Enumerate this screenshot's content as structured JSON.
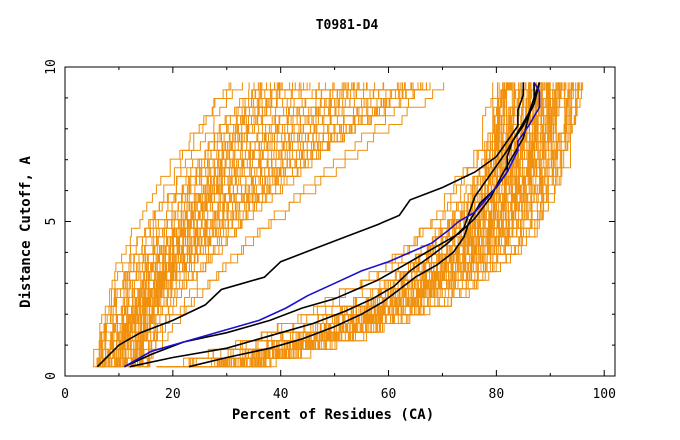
{
  "chart_data": {
    "type": "line",
    "title": "T0981-D4",
    "xlabel": "Percent of Residues (CA)",
    "ylabel": "Distance Cutoff, A",
    "xlim": [
      0,
      102
    ],
    "ylim": [
      0,
      10
    ],
    "xticks": [
      0,
      20,
      40,
      60,
      80,
      100
    ],
    "yticks": [
      0,
      5,
      10
    ],
    "grid": false,
    "colors": {
      "orange": "#f0900c",
      "black": "#000000",
      "blue": "#1a10d0"
    },
    "series": [
      {
        "color": "black",
        "x": [
          6,
          10,
          14,
          20,
          26,
          29,
          33,
          37,
          40,
          46,
          52,
          58,
          62,
          64,
          70,
          76,
          80,
          82,
          84,
          84,
          85,
          85
        ],
        "y": [
          0.3,
          1.0,
          1.4,
          1.8,
          2.3,
          2.8,
          3.0,
          3.2,
          3.7,
          4.1,
          4.5,
          4.9,
          5.2,
          5.7,
          6.1,
          6.6,
          7.1,
          7.6,
          8.1,
          8.6,
          9.1,
          9.5
        ]
      },
      {
        "color": "black",
        "x": [
          11,
          16,
          22,
          30,
          38,
          44,
          50,
          54,
          58,
          62,
          66,
          70,
          73,
          76,
          79,
          81,
          83,
          85,
          86,
          87,
          87
        ],
        "y": [
          0.3,
          0.7,
          1.1,
          1.4,
          1.8,
          2.2,
          2.5,
          2.8,
          3.1,
          3.5,
          3.9,
          4.3,
          4.6,
          5.1,
          5.8,
          6.5,
          7.1,
          7.7,
          8.4,
          9.0,
          9.5
        ]
      },
      {
        "color": "black",
        "x": [
          12,
          20,
          30,
          38,
          46,
          52,
          57,
          61,
          64,
          68,
          71,
          74,
          75,
          76,
          78,
          80,
          82,
          84,
          86,
          87,
          88
        ],
        "y": [
          0.3,
          0.6,
          0.9,
          1.3,
          1.7,
          2.1,
          2.5,
          2.9,
          3.4,
          3.9,
          4.3,
          4.8,
          5.3,
          5.8,
          6.3,
          6.8,
          7.3,
          7.9,
          8.5,
          9.0,
          9.5
        ]
      },
      {
        "color": "black",
        "x": [
          23,
          30,
          38,
          44,
          50,
          55,
          59,
          62,
          65,
          69,
          72,
          74,
          75,
          77,
          80,
          82,
          82,
          83,
          85,
          87,
          88
        ],
        "y": [
          0.3,
          0.6,
          0.9,
          1.2,
          1.6,
          2.0,
          2.4,
          2.8,
          3.2,
          3.6,
          4.0,
          4.5,
          5.0,
          5.6,
          6.1,
          6.6,
          7.1,
          7.6,
          8.1,
          8.8,
          9.5
        ]
      },
      {
        "color": "blue",
        "x": [
          11,
          16,
          22,
          30,
          36,
          41,
          45,
          50,
          55,
          60,
          64,
          68,
          71,
          73,
          76,
          79,
          82,
          84,
          84,
          86,
          88,
          88,
          87
        ],
        "y": [
          0.3,
          0.8,
          1.1,
          1.5,
          1.8,
          2.2,
          2.6,
          3.0,
          3.4,
          3.7,
          4.0,
          4.3,
          4.7,
          5.0,
          5.3,
          5.9,
          6.6,
          7.3,
          7.6,
          8.1,
          8.7,
          9.2,
          9.5
        ]
      }
    ]
  }
}
